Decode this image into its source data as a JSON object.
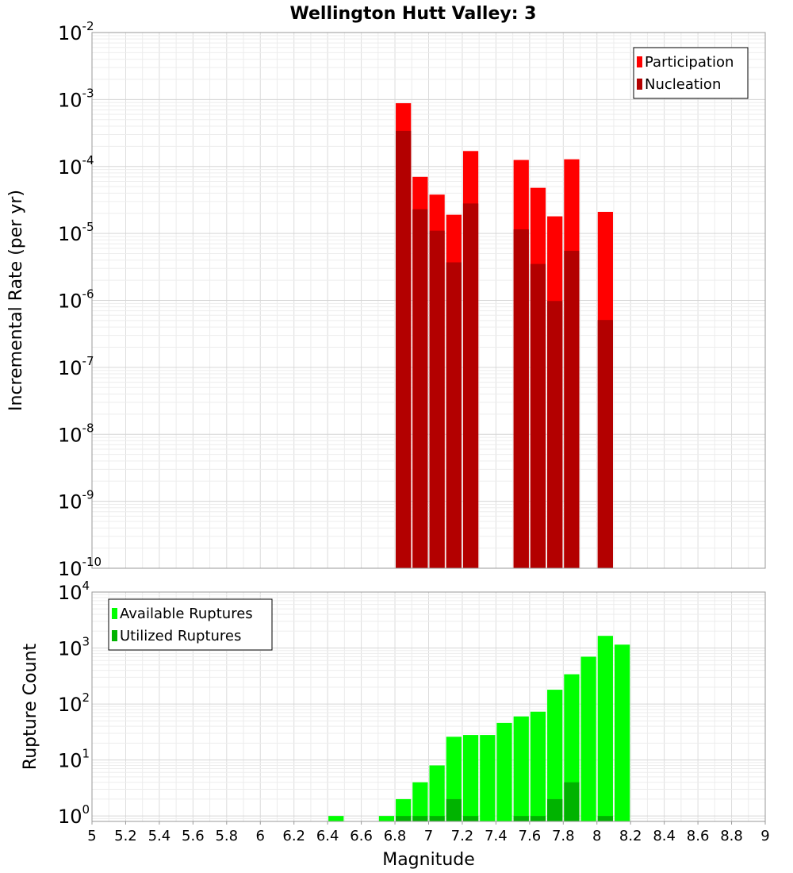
{
  "chart_data": [
    {
      "type": "bar",
      "title": "Wellington Hutt Valley: 3",
      "ylabel": "Incremental Rate (per yr)",
      "yscale": "log",
      "ylim": [
        1e-10,
        0.01
      ],
      "y_tick_exponents": [
        -10,
        -9,
        -8,
        -7,
        -6,
        -5,
        -4,
        -3,
        -2
      ],
      "bin_width": 0.1,
      "legend_position": "top-right",
      "grid": true,
      "series": [
        {
          "name": "Participation",
          "color": "#ff0000",
          "x": [
            6.85,
            6.95,
            7.05,
            7.15,
            7.25,
            7.55,
            7.65,
            7.75,
            7.85,
            8.05
          ],
          "values": [
            0.00088,
            7e-05,
            3.8e-05,
            1.9e-05,
            0.00017,
            0.000125,
            4.8e-05,
            1.8e-05,
            0.000128,
            2.1e-05
          ]
        },
        {
          "name": "Nucleation",
          "color": "#b30000",
          "x": [
            6.85,
            6.95,
            7.05,
            7.15,
            7.25,
            7.55,
            7.65,
            7.75,
            7.85,
            8.05
          ],
          "values": [
            0.00034,
            2.3e-05,
            1.1e-05,
            3.7e-06,
            2.8e-05,
            1.15e-05,
            3.5e-06,
            9.8e-07,
            5.5e-06,
            5.1e-07
          ]
        }
      ]
    },
    {
      "type": "bar",
      "xlabel": "Magnitude",
      "ylabel": "Rupture Count",
      "yscale": "log",
      "ylim": [
        0.8,
        10000
      ],
      "y_tick_exponents": [
        0,
        1,
        2,
        3,
        4
      ],
      "xlim": [
        5,
        9
      ],
      "x_ticks": [
        "5",
        "5.2",
        "5.4",
        "5.6",
        "5.8",
        "6",
        "6.2",
        "6.4",
        "6.6",
        "6.8",
        "7",
        "7.2",
        "7.4",
        "7.6",
        "7.8",
        "8",
        "8.2",
        "8.4",
        "8.6",
        "8.8",
        "9"
      ],
      "bin_width": 0.1,
      "legend_position": "top-left",
      "grid": true,
      "series": [
        {
          "name": "Available Ruptures",
          "color": "#00ff00",
          "x": [
            6.45,
            6.75,
            6.85,
            6.95,
            7.05,
            7.15,
            7.25,
            7.35,
            7.45,
            7.55,
            7.65,
            7.75,
            7.85,
            7.95,
            8.05,
            8.15
          ],
          "values": [
            1,
            1,
            2,
            4,
            8,
            26,
            28,
            28,
            46,
            60,
            73,
            180,
            340,
            700,
            1650,
            1150
          ]
        },
        {
          "name": "Utilized Ruptures",
          "color": "#00b300",
          "x": [
            6.85,
            6.95,
            7.05,
            7.15,
            7.25,
            7.55,
            7.65,
            7.75,
            7.85,
            8.05
          ],
          "values": [
            1,
            1,
            1,
            2,
            1,
            1,
            1,
            2,
            4,
            1
          ]
        }
      ]
    }
  ]
}
